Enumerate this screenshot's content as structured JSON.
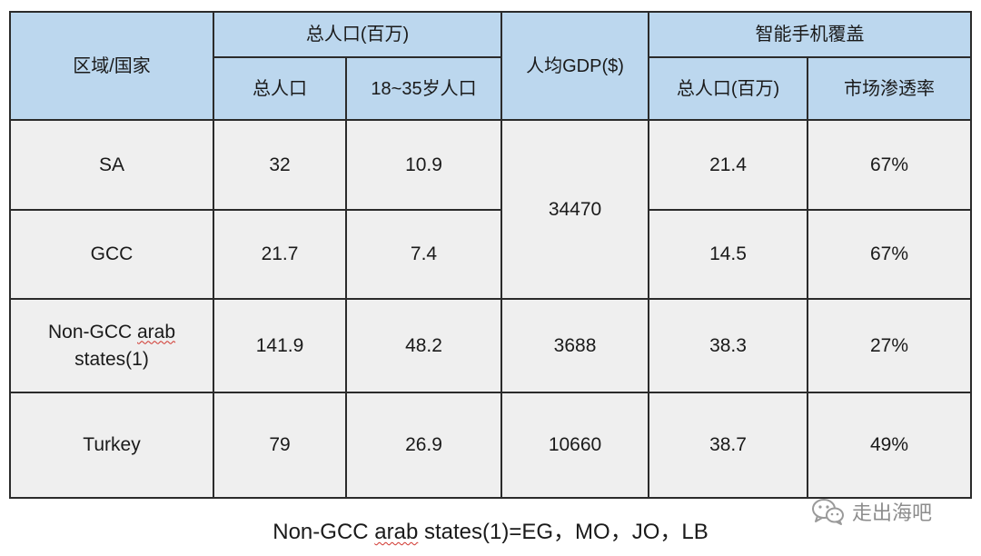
{
  "table": {
    "header": {
      "region": "区域/国家",
      "population_group": "总人口(百万)",
      "total_population": "总人口",
      "age_18_35": "18~35岁人口",
      "gdp_per_capita": "人均GDP($)",
      "smartphone_group": "智能手机覆盖",
      "smartphone_population": "总人口(百万)",
      "penetration": "市场渗透率"
    },
    "rows": [
      {
        "region": "SA",
        "total": "32",
        "youth": "10.9",
        "smart_pop": "21.4",
        "penetration": "67%"
      },
      {
        "region": "GCC",
        "total": "21.7",
        "youth": "7.4",
        "smart_pop": "14.5",
        "penetration": "67%"
      },
      {
        "region_line1": "Non-GCC arab",
        "region_line2": "states(1)",
        "total": "141.9",
        "youth": "48.2",
        "gdp": "3688",
        "smart_pop": "38.3",
        "penetration": "27%"
      },
      {
        "region": "Turkey",
        "total": "79",
        "youth": "26.9",
        "gdp": "10660",
        "smart_pop": "38.7",
        "penetration": "49%"
      }
    ],
    "gdp_sa_gcc_merged": "34470"
  },
  "footnote": {
    "prefix": "Non-GCC ",
    "marked_word": "arab",
    "suffix": " states(1)=EG，MO，JO，LB"
  },
  "watermark": {
    "text": "走出海吧",
    "icon": "wechat-icon"
  }
}
